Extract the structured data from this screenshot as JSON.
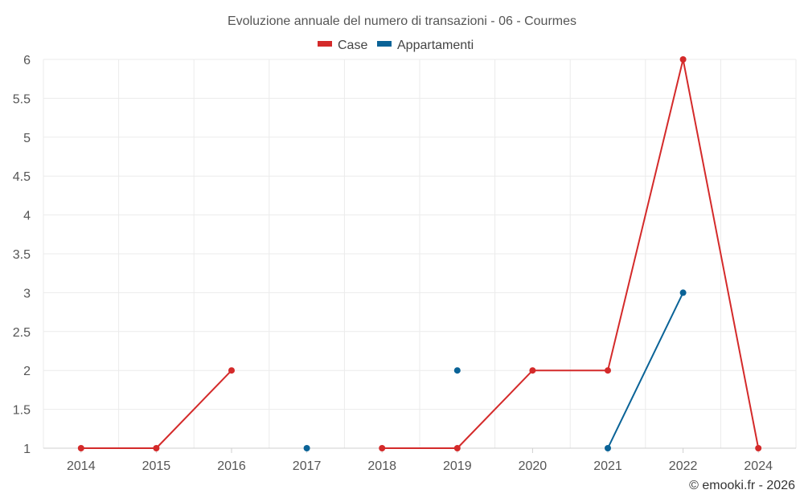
{
  "chart_data": {
    "type": "line",
    "title": "Evoluzione annuale del numero di transazioni - 06 - Courmes",
    "categories": [
      "2014",
      "2015",
      "2016",
      "2017",
      "2018",
      "2019",
      "2020",
      "2021",
      "2022",
      "2024"
    ],
    "ylim": [
      1,
      6
    ],
    "yticks": [
      "1",
      "1.5",
      "2",
      "2.5",
      "3",
      "3.5",
      "4",
      "4.5",
      "5",
      "5.5",
      "6"
    ],
    "grid": true,
    "legend_position": "top-center",
    "series": [
      {
        "name": "Case",
        "color": "#d42a2a",
        "values": [
          1,
          1,
          2,
          null,
          1,
          1,
          2,
          2,
          6,
          1
        ]
      },
      {
        "name": "Appartamenti",
        "color": "#0a6397",
        "values": [
          null,
          null,
          null,
          1,
          null,
          2,
          null,
          1,
          3,
          null
        ]
      }
    ],
    "credit": "© emooki.fr - 2026"
  }
}
